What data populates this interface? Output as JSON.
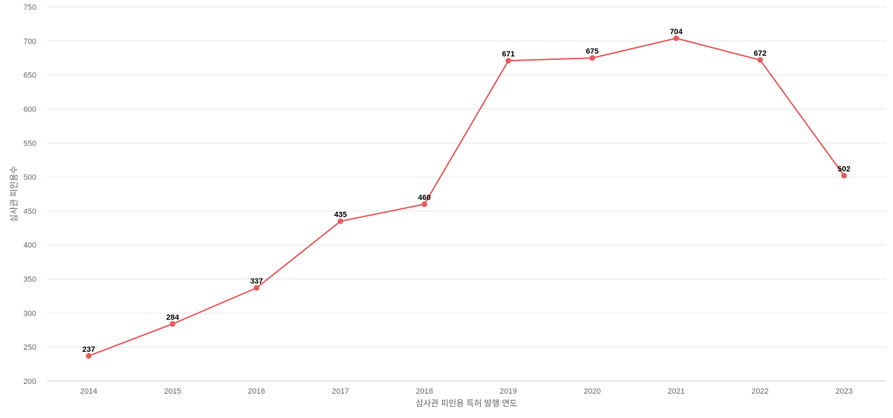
{
  "chart_data": {
    "type": "line",
    "title": "",
    "xlabel": "심사관 피인용 특허 발행 연도",
    "ylabel": "심사관 피인용수",
    "categories": [
      "2014",
      "2015",
      "2016",
      "2017",
      "2018",
      "2019",
      "2020",
      "2021",
      "2022",
      "2023"
    ],
    "series": [
      {
        "values": [
          237,
          284,
          337,
          435,
          460,
          671,
          675,
          704,
          672,
          502
        ],
        "color": "#e85a5a"
      }
    ],
    "ylim": [
      200,
      750
    ],
    "yticks": [
      200,
      250,
      300,
      350,
      400,
      450,
      500,
      550,
      600,
      650,
      700,
      750
    ],
    "grid": true,
    "legend": "none",
    "data_labels": true
  }
}
